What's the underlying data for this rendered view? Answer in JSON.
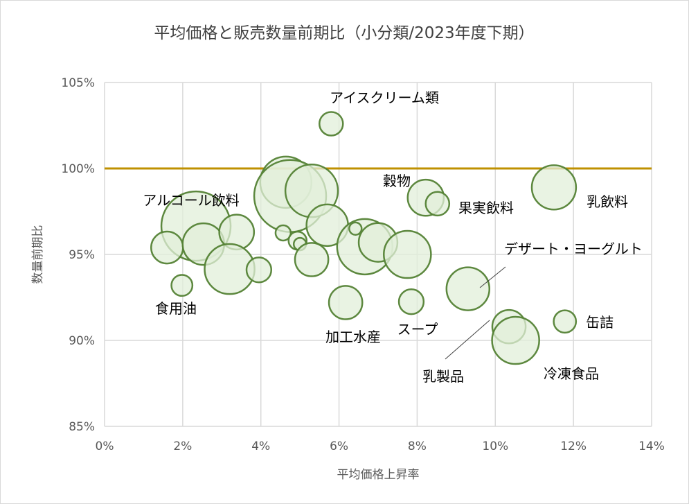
{
  "chart_data": {
    "type": "bubble",
    "title": "平均価格と販売数量前期比（小分類/2023年度下期）",
    "xlabel": "平均価格上昇率",
    "ylabel": "数量前期比",
    "xlim": [
      0,
      14
    ],
    "ylim": [
      85,
      105
    ],
    "xticks": [
      "0%",
      "2%",
      "4%",
      "6%",
      "8%",
      "10%",
      "12%",
      "14%"
    ],
    "yticks": [
      "85%",
      "90%",
      "95%",
      "100%",
      "105%"
    ],
    "grid": true,
    "reference_line": {
      "y": 100,
      "color": "#bf9000"
    },
    "bubble_fill": "#e2efda",
    "bubble_stroke": "#548235",
    "points": [
      {
        "label": "アイスクリーム類",
        "x": 5.8,
        "y": 102.6,
        "size": 2.9
      },
      {
        "label": "",
        "x": 4.64,
        "y": 99.2,
        "size": 13.7
      },
      {
        "label": "",
        "x": 4.75,
        "y": 98.4,
        "size": 27
      },
      {
        "label": "",
        "x": 5.3,
        "y": 98.7,
        "size": 14.4
      },
      {
        "label": "",
        "x": 5.7,
        "y": 96.7,
        "size": 9
      },
      {
        "label": "アルコール飲料",
        "x": 2.34,
        "y": 96.65,
        "size": 25
      },
      {
        "label": "",
        "x": 1.6,
        "y": 95.4,
        "size": 5.3
      },
      {
        "label": "",
        "x": 2.53,
        "y": 95.6,
        "size": 9
      },
      {
        "label": "",
        "x": 3.38,
        "y": 96.3,
        "size": 6.3
      },
      {
        "label": "",
        "x": 3.2,
        "y": 94.15,
        "size": 13
      },
      {
        "label": "",
        "x": 3.95,
        "y": 94.1,
        "size": 3.2
      },
      {
        "label": "食用油",
        "x": 1.98,
        "y": 93.2,
        "size": 2.3
      },
      {
        "label": "",
        "x": 4.57,
        "y": 96.25,
        "size": 1.2
      },
      {
        "label": "",
        "x": 4.94,
        "y": 95.8,
        "size": 1.7
      },
      {
        "label": "",
        "x": 5.0,
        "y": 95.6,
        "size": 0.8
      },
      {
        "label": "",
        "x": 5.3,
        "y": 94.7,
        "size": 5.8
      },
      {
        "label": "",
        "x": 6.66,
        "y": 95.45,
        "size": 16
      },
      {
        "label": "",
        "x": 6.42,
        "y": 96.5,
        "size": 0.8
      },
      {
        "label": "",
        "x": 7.0,
        "y": 95.7,
        "size": 7.8
      },
      {
        "label": "",
        "x": 7.75,
        "y": 95.0,
        "size": 11.6
      },
      {
        "label": "加工水産",
        "x": 6.17,
        "y": 92.2,
        "size": 5.8
      },
      {
        "label": "スープ",
        "x": 7.85,
        "y": 92.25,
        "size": 3.2
      },
      {
        "label": "穀物",
        "x": 8.22,
        "y": 98.3,
        "size": 6.8
      },
      {
        "label": "果実飲料",
        "x": 8.52,
        "y": 97.95,
        "size": 2.9
      },
      {
        "label": "乳飲料",
        "x": 11.5,
        "y": 98.9,
        "size": 10.2
      },
      {
        "label": "デザート・ヨーグルト",
        "x": 9.3,
        "y": 93.0,
        "size": 9.6
      },
      {
        "label": "乳製品",
        "x": 10.35,
        "y": 90.8,
        "size": 5.8
      },
      {
        "label": "冷凍食品",
        "x": 10.52,
        "y": 90.0,
        "size": 11.6
      },
      {
        "label": "缶詰",
        "x": 11.78,
        "y": 91.1,
        "size": 2.6
      }
    ]
  }
}
